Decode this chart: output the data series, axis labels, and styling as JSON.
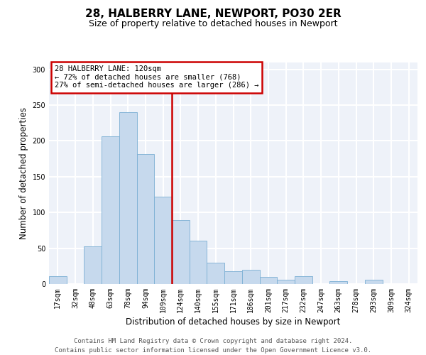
{
  "title": "28, HALBERRY LANE, NEWPORT, PO30 2ER",
  "subtitle": "Size of property relative to detached houses in Newport",
  "xlabel": "Distribution of detached houses by size in Newport",
  "ylabel": "Number of detached properties",
  "bar_labels": [
    "17sqm",
    "32sqm",
    "48sqm",
    "63sqm",
    "78sqm",
    "94sqm",
    "109sqm",
    "124sqm",
    "140sqm",
    "155sqm",
    "171sqm",
    "186sqm",
    "201sqm",
    "217sqm",
    "232sqm",
    "247sqm",
    "263sqm",
    "278sqm",
    "293sqm",
    "309sqm",
    "324sqm"
  ],
  "bar_values": [
    11,
    0,
    53,
    206,
    240,
    182,
    122,
    89,
    61,
    30,
    18,
    20,
    10,
    6,
    11,
    0,
    4,
    0,
    6,
    0,
    0
  ],
  "bar_color": "#c6d9ed",
  "bar_edge_color": "#7bafd4",
  "vline_x": 6.5,
  "vline_color": "#cc0000",
  "annotation_box_text": "28 HALBERRY LANE: 120sqm\n← 72% of detached houses are smaller (768)\n27% of semi-detached houses are larger (286) →",
  "annotation_box_color": "#cc0000",
  "annotation_box_fill": "#ffffff",
  "ylim": [
    0,
    310
  ],
  "yticks": [
    0,
    50,
    100,
    150,
    200,
    250,
    300
  ],
  "footer_text": "Contains HM Land Registry data © Crown copyright and database right 2024.\nContains public sector information licensed under the Open Government Licence v3.0.",
  "background_color": "#eef2f9",
  "grid_color": "#ffffff",
  "title_fontsize": 11,
  "subtitle_fontsize": 9,
  "axis_label_fontsize": 8.5,
  "tick_fontsize": 7,
  "footer_fontsize": 6.5,
  "ann_fontsize": 7.5
}
